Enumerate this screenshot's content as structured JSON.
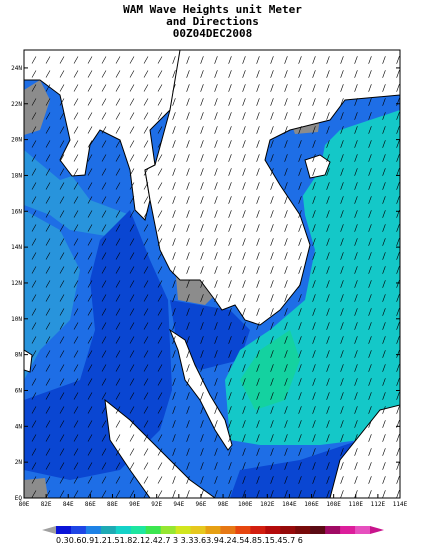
{
  "title": {
    "line1": "WAM Wave Heights unit Meter",
    "line2": "and Directions",
    "line3": "00Z04DEC2008"
  },
  "map": {
    "lon_range": [
      80,
      115
    ],
    "lat_range": [
      0,
      25
    ],
    "x_ticks": [
      "80E",
      "82E",
      "84E",
      "86E",
      "88E",
      "90E",
      "92E",
      "94E",
      "96E",
      "98E",
      "100E",
      "102E",
      "104E",
      "106E",
      "108E",
      "110E",
      "112E",
      "114E"
    ],
    "y_ticks": [
      "EQ",
      "2N",
      "4N",
      "6N",
      "8N",
      "10N",
      "12N",
      "14N",
      "16N",
      "18N",
      "20N",
      "22N",
      "24N"
    ]
  },
  "colorbar": {
    "labels": "0.30.60.91.21.51.82.12.42.7 3 3.33.63.94.24.54.85.15.45.7 6",
    "colors": [
      "#0a14d8",
      "#1e46e6",
      "#1e82e6",
      "#1eaab4",
      "#14d2c8",
      "#1ee6a0",
      "#3ce650",
      "#96e632",
      "#d2e61e",
      "#e6c81e",
      "#e6a014",
      "#e67814",
      "#e6460f",
      "#d21e0f",
      "#b40a0a",
      "#960a0a",
      "#780a0a",
      "#5a0a14",
      "#a00a64",
      "#dc1e9b",
      "#e650be"
    ]
  },
  "colors": {
    "ocean_deep": "#0a46d2",
    "ocean_mid": "#1e6ee6",
    "ocean_light": "#2894dc",
    "ocean_cyan": "#14c8c8",
    "ocean_green": "#14d2a0",
    "land": "#ffffff",
    "missing": "#8c8c8c"
  }
}
